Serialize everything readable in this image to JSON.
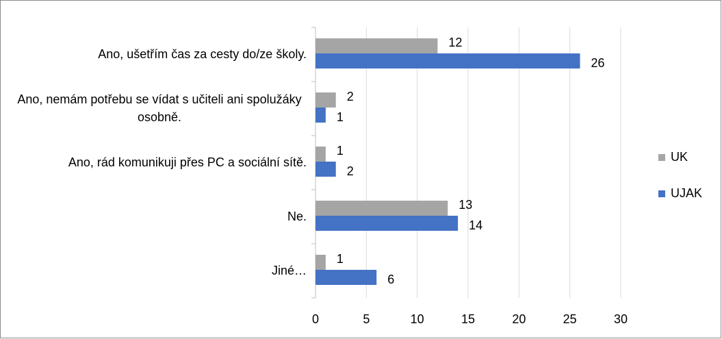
{
  "chart_data": {
    "type": "bar",
    "orientation": "horizontal",
    "categories": [
      "Ano, ušetřím čas za cesty do/ze školy.",
      "Ano, nemám potřebu se vídat s učiteli ani spolužáky osobně.",
      "Ano, rád komunikuji přes PC a sociální sítě.",
      "Ne.",
      "Jiné…"
    ],
    "series": [
      {
        "name": "UK",
        "color": "#a5a5a5",
        "values": [
          12,
          2,
          1,
          13,
          1
        ]
      },
      {
        "name": "UJAK",
        "color": "#4472c4",
        "values": [
          26,
          1,
          2,
          14,
          6
        ]
      }
    ],
    "xlim": [
      0,
      30
    ],
    "xticks": [
      0,
      5,
      10,
      15,
      20,
      25,
      30
    ],
    "grid": true,
    "legend": "right"
  }
}
